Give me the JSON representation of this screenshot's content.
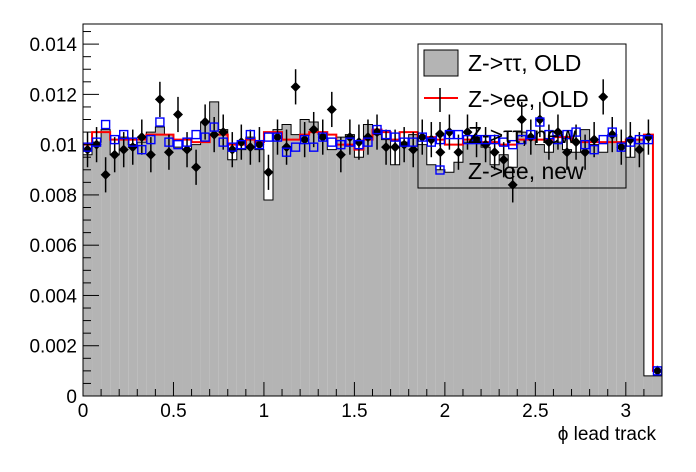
{
  "chart_data": {
    "type": "histogram",
    "xlabel": "ϕ lead track",
    "ylabel": "",
    "xlim": [
      0,
      3.2
    ],
    "ylim": [
      0,
      0.0148
    ],
    "grid": false,
    "legend_position": "top-right",
    "xticks": [
      {
        "value": 0,
        "label": "0"
      },
      {
        "value": 0.5,
        "label": "0.5"
      },
      {
        "value": 1,
        "label": "1"
      },
      {
        "value": 1.5,
        "label": "1.5"
      },
      {
        "value": 2,
        "label": "2"
      },
      {
        "value": 2.5,
        "label": "2.5"
      },
      {
        "value": 3,
        "label": "3"
      }
    ],
    "yticks": [
      {
        "value": 0,
        "label": "0"
      },
      {
        "value": 0.002,
        "label": "0.002"
      },
      {
        "value": 0.004,
        "label": "0.004"
      },
      {
        "value": 0.006,
        "label": "0.006"
      },
      {
        "value": 0.008,
        "label": "0.008"
      },
      {
        "value": 0.01,
        "label": "0.01"
      },
      {
        "value": 0.012,
        "label": "0.012"
      },
      {
        "value": 0.014,
        "label": "0.014"
      }
    ],
    "bin_width": 0.05,
    "x": [
      0.025,
      0.075,
      0.125,
      0.175,
      0.225,
      0.275,
      0.325,
      0.375,
      0.425,
      0.475,
      0.525,
      0.575,
      0.625,
      0.675,
      0.725,
      0.775,
      0.825,
      0.875,
      0.925,
      0.975,
      1.025,
      1.075,
      1.125,
      1.175,
      1.225,
      1.275,
      1.325,
      1.375,
      1.425,
      1.475,
      1.525,
      1.575,
      1.625,
      1.675,
      1.725,
      1.775,
      1.825,
      1.875,
      1.925,
      1.975,
      2.025,
      2.075,
      2.125,
      2.175,
      2.225,
      2.275,
      2.325,
      2.375,
      2.425,
      2.475,
      2.525,
      2.575,
      2.625,
      2.675,
      2.725,
      2.775,
      2.825,
      2.875,
      2.925,
      2.975,
      3.025,
      3.075,
      3.125,
      3.175
    ],
    "series": [
      {
        "name": "Z->ττ, OLD",
        "style": "filled-histogram",
        "color": "#b4b4b4",
        "values": [
          0.0096,
          0.0101,
          0.0106,
          0.0096,
          0.0103,
          0.01,
          0.0101,
          0.0105,
          0.0107,
          0.0104,
          0.0099,
          0.0098,
          0.01,
          0.0109,
          0.0117,
          0.0106,
          0.0094,
          0.0098,
          0.0103,
          0.0098,
          0.0078,
          0.0106,
          0.0108,
          0.0104,
          0.011,
          0.0109,
          0.0104,
          0.0098,
          0.0103,
          0.0104,
          0.0095,
          0.0108,
          0.0104,
          0.0102,
          0.0092,
          0.0101,
          0.0104,
          0.01,
          0.0092,
          0.009,
          0.0089,
          0.0093,
          0.0101,
          0.0103,
          0.0099,
          0.0092,
          0.0096,
          0.0091,
          0.0105,
          0.0103,
          0.01,
          0.0097,
          0.0101,
          0.0098,
          0.0097,
          0.0106,
          0.01,
          0.0097,
          0.0104,
          0.0101,
          0.0095,
          0.0102,
          0.0008,
          0.0008
        ]
      },
      {
        "name": "Z->ee, OLD",
        "style": "step-line",
        "color": "#ff0000",
        "values": [
          0.01,
          0.0105,
          0.0105,
          0.0102,
          0.0102,
          0.0102,
          0.0102,
          0.0104,
          0.0104,
          0.0104,
          0.0102,
          0.0102,
          0.0101,
          0.0101,
          0.0104,
          0.0104,
          0.01,
          0.01,
          0.0102,
          0.0101,
          0.0105,
          0.0105,
          0.0102,
          0.0102,
          0.0104,
          0.0105,
          0.0105,
          0.0104,
          0.01,
          0.01,
          0.0098,
          0.0102,
          0.0106,
          0.0105,
          0.0102,
          0.0105,
          0.0105,
          0.0103,
          0.0103,
          0.0102,
          0.01,
          0.01,
          0.0102,
          0.0102,
          0.0101,
          0.0101,
          0.01,
          0.01,
          0.0102,
          0.0102,
          0.0102,
          0.0102,
          0.0103,
          0.0103,
          0.0101,
          0.0101,
          0.0101,
          0.0101,
          0.0101,
          0.0101,
          0.0102,
          0.0102,
          0.0104,
          0.001
        ]
      },
      {
        "name": "Z->ττ, new",
        "style": "markers-with-errors",
        "color": "#000000",
        "values": [
          0.0098,
          0.01,
          0.0088,
          0.0096,
          0.0098,
          0.0099,
          0.0103,
          0.0096,
          0.0118,
          0.0097,
          0.0112,
          0.0098,
          0.0091,
          0.0109,
          0.0104,
          0.0105,
          0.0098,
          0.0101,
          0.0099,
          0.01,
          0.0089,
          0.0103,
          0.0099,
          0.0123,
          0.0102,
          0.0106,
          0.0103,
          0.0114,
          0.0096,
          0.0103,
          0.0101,
          0.0103,
          0.0105,
          0.0099,
          0.0099,
          0.01,
          0.0098,
          0.0103,
          0.0102,
          0.0097,
          0.0105,
          0.0097,
          0.0105,
          0.0102,
          0.01,
          0.0097,
          0.0094,
          0.0084,
          0.011,
          0.0103,
          0.011,
          0.0101,
          0.0105,
          0.0097,
          0.0101,
          0.0097,
          0.0102,
          0.0119,
          0.0104,
          0.0099,
          0.0102,
          0.0098,
          0.0103,
          0.001
        ],
        "errors": [
          0.0007,
          0.0007,
          0.0007,
          0.0007,
          0.0007,
          0.0007,
          0.0007,
          0.0007,
          0.0007,
          0.0007,
          0.0007,
          0.0007,
          0.0007,
          0.0007,
          0.0007,
          0.0007,
          0.0007,
          0.0007,
          0.0007,
          0.0007,
          0.0007,
          0.0007,
          0.0007,
          0.0007,
          0.0007,
          0.0007,
          0.0007,
          0.0007,
          0.0007,
          0.0007,
          0.0007,
          0.0007,
          0.0007,
          0.0007,
          0.0007,
          0.0007,
          0.0007,
          0.0007,
          0.0007,
          0.0007,
          0.0007,
          0.0007,
          0.0007,
          0.0007,
          0.0007,
          0.0007,
          0.0007,
          0.0007,
          0.0007,
          0.0007,
          0.0007,
          0.0007,
          0.0007,
          0.0007,
          0.0007,
          0.0007,
          0.0007,
          0.0007,
          0.0007,
          0.0007,
          0.0007,
          0.0007,
          0.0007,
          0.0002
        ]
      },
      {
        "name": "Z->ee, new",
        "style": "open-square-markers",
        "color": "#0000ff",
        "values": [
          0.0099,
          0.0101,
          0.0108,
          0.0102,
          0.0104,
          0.0101,
          0.0098,
          0.0102,
          0.0109,
          0.0101,
          0.01,
          0.0101,
          0.0104,
          0.0103,
          0.0107,
          0.0101,
          0.0099,
          0.01,
          0.0104,
          0.01,
          0.0103,
          0.0103,
          0.0097,
          0.0099,
          0.0102,
          0.0099,
          0.0103,
          0.0101,
          0.01,
          0.0101,
          0.01,
          0.0101,
          0.0106,
          0.0104,
          0.0103,
          0.0101,
          0.0101,
          0.0103,
          0.0101,
          0.0102,
          0.0104,
          0.0104,
          0.0102,
          0.0102,
          0.0102,
          0.0102,
          0.0101,
          0.01,
          0.0102,
          0.0104,
          0.0109,
          0.0104,
          0.0102,
          0.0104,
          0.0105,
          0.01,
          0.0098,
          0.0102,
          0.0105,
          0.0099,
          0.0101,
          0.0102,
          0.0102,
          0.001
        ]
      }
    ]
  }
}
